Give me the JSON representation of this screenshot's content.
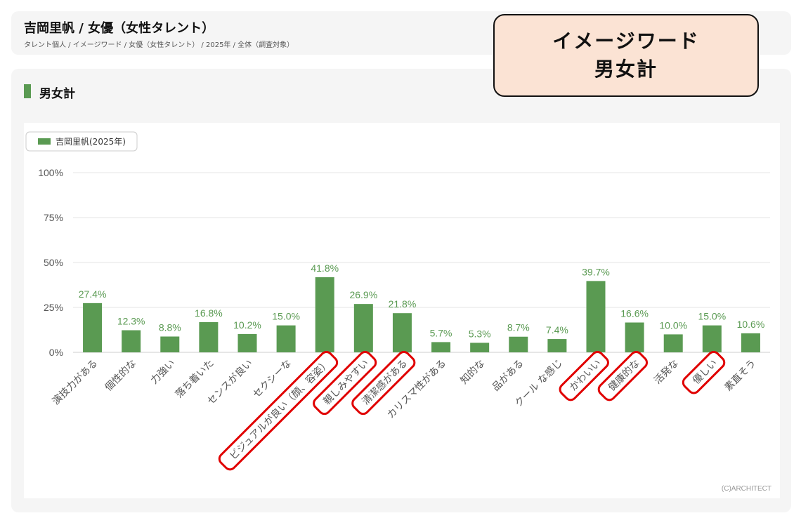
{
  "header": {
    "title": "吉岡里帆 / 女優（女性タレント）",
    "breadcrumb": "タレント個人 / イメージワード / 女優（女性タレント） / 2025年 / 全体（調査対象）"
  },
  "section": {
    "title": "男女計"
  },
  "callout": {
    "line1": "イメージワード",
    "line2": "男女計",
    "background": "#fbe3d4"
  },
  "copyright": "(C)ARCHITECT",
  "colors": {
    "bar": "#5a9a52",
    "highlight": "#e00000",
    "grid": "#e6e6e6",
    "axis_label": "#555555"
  },
  "chart_data": {
    "type": "bar",
    "legend": {
      "position": "top-left"
    },
    "grid": true,
    "ylim": [
      0,
      100
    ],
    "yticks": [
      "0%",
      "25%",
      "50%",
      "75%",
      "100%"
    ],
    "categories": [
      "演技力がある",
      "個性的な",
      "力強い",
      "落ち着いた",
      "センスが良い",
      "セクシーな",
      "ビジュアルが良い（顔、容姿）",
      "親しみやすい",
      "清潔感がある",
      "カリスマ性がある",
      "知的な",
      "品がある",
      "クール な感じ",
      "かわいい",
      "健康的な",
      "活発な",
      "優しい",
      "素直そう"
    ],
    "series": [
      {
        "name": "吉岡里帆(2025年)",
        "values": [
          27.4,
          12.3,
          8.8,
          16.8,
          10.2,
          15.0,
          41.8,
          26.9,
          21.8,
          5.7,
          5.3,
          8.7,
          7.4,
          39.7,
          16.6,
          10.0,
          15.0,
          10.6
        ],
        "value_labels": [
          "27.4%",
          "12.3%",
          "8.8%",
          "16.8%",
          "10.2%",
          "15.0%",
          "41.8%",
          "26.9%",
          "21.8%",
          "5.7%",
          "5.3%",
          "8.7%",
          "7.4%",
          "39.7%",
          "16.6%",
          "10.0%",
          "15.0%",
          "10.6%"
        ]
      }
    ],
    "highlighted_categories": [
      "ビジュアルが良い（顔、容姿）",
      "親しみやすい",
      "清潔感がある",
      "かわいい",
      "健康的な",
      "優しい"
    ]
  }
}
